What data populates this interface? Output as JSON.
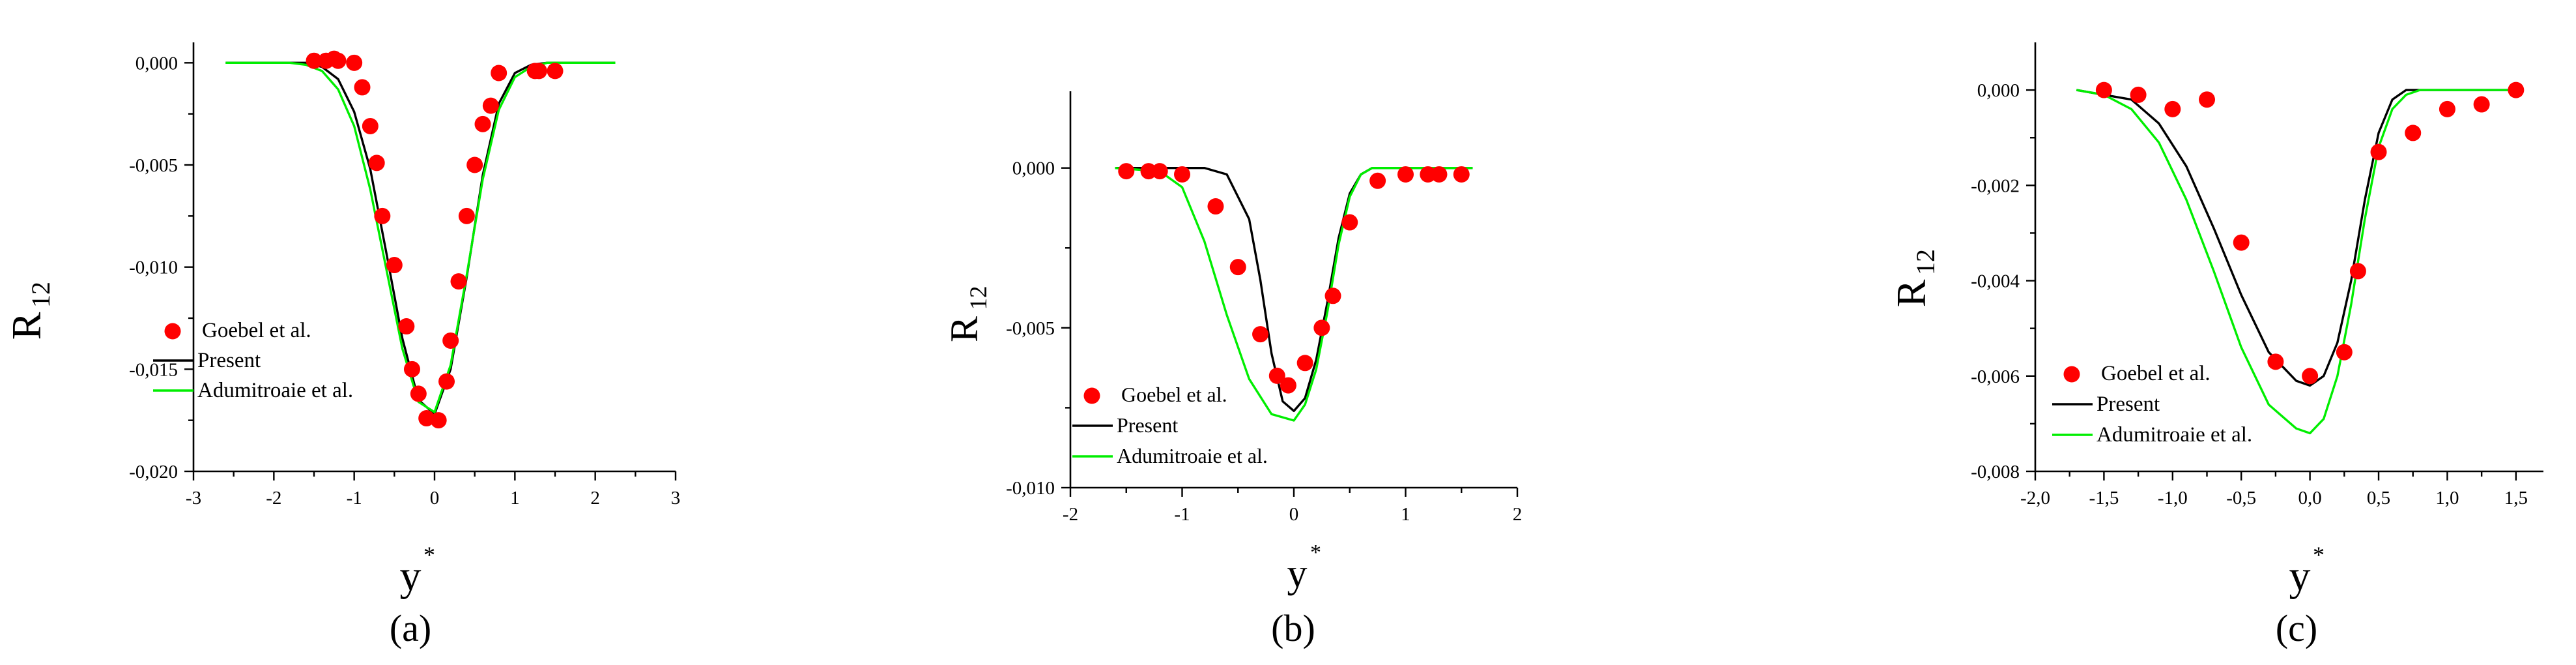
{
  "colors": {
    "data": "#ff0000",
    "present": "#000000",
    "adumitroaie": "#00ee00",
    "axis": "#000000"
  },
  "chart_data": [
    {
      "type": "scatter+line",
      "panel_label": "(a)",
      "xlabel": "y",
      "xlabel_sup": "*",
      "ylabel": "R",
      "ylabel_sub": "12",
      "xlim": [
        -3,
        3
      ],
      "ylim": [
        -0.02,
        0.001
      ],
      "xticks": [
        -3,
        -2,
        -1,
        0,
        1,
        2,
        3
      ],
      "xtick_labels": [
        "-3",
        "-2",
        "-1",
        "0",
        "1",
        "2",
        "3"
      ],
      "yticks": [
        0,
        -0.005,
        -0.01,
        -0.015,
        -0.02
      ],
      "ytick_labels": [
        "0,000",
        "-0,005",
        "-0,010",
        "-0,015",
        "-0,020"
      ],
      "legend": [
        "Goebel et al.",
        "Present",
        "Adumitroaie et al."
      ],
      "legend_position": "bottom-left",
      "series": [
        {
          "name": "Goebel et al.",
          "kind": "markers",
          "x": [
            -1.5,
            -1.35,
            -1.25,
            -1.2,
            -1.0,
            -0.9,
            -0.8,
            -0.72,
            -0.65,
            -0.5,
            -0.35,
            -0.28,
            -0.2,
            -0.1,
            0.05,
            0.15,
            0.2,
            0.3,
            0.4,
            0.5,
            0.6,
            0.7,
            0.8,
            1.25,
            1.3,
            1.5
          ],
          "y": [
            0.0001,
            0.0001,
            0.0002,
            0.0001,
            0.0,
            -0.0012,
            -0.0031,
            -0.0049,
            -0.0075,
            -0.0099,
            -0.0129,
            -0.015,
            -0.0162,
            -0.0174,
            -0.0175,
            -0.0156,
            -0.0136,
            -0.0107,
            -0.0075,
            -0.005,
            -0.003,
            -0.0021,
            -0.0005,
            -0.0004,
            -0.0004,
            -0.0004
          ]
        },
        {
          "name": "Present",
          "kind": "line",
          "x": [
            -2.6,
            -1.6,
            -1.4,
            -1.2,
            -1.0,
            -0.8,
            -0.6,
            -0.4,
            -0.2,
            0.0,
            0.2,
            0.4,
            0.6,
            0.8,
            1.0,
            1.2,
            1.4,
            2.25
          ],
          "y": [
            0.0,
            0.0,
            -0.0002,
            -0.0008,
            -0.0024,
            -0.0052,
            -0.0093,
            -0.0135,
            -0.0165,
            -0.0172,
            -0.015,
            -0.0105,
            -0.0055,
            -0.002,
            -0.0005,
            -0.0001,
            0.0,
            0.0
          ]
        },
        {
          "name": "Adumitroaie et al.",
          "kind": "line",
          "x": [
            -2.6,
            -1.8,
            -1.6,
            -1.4,
            -1.2,
            -1.0,
            -0.8,
            -0.6,
            -0.4,
            -0.2,
            0.0,
            0.2,
            0.4,
            0.6,
            0.8,
            1.0,
            1.2,
            1.4,
            2.25
          ],
          "y": [
            0.0,
            0.0,
            -0.0001,
            -0.0004,
            -0.0013,
            -0.0031,
            -0.0062,
            -0.0101,
            -0.014,
            -0.0166,
            -0.0171,
            -0.0148,
            -0.0104,
            -0.0057,
            -0.0023,
            -0.0007,
            -0.0002,
            0.0,
            0.0
          ]
        }
      ]
    },
    {
      "type": "scatter+line",
      "panel_label": "(b)",
      "xlabel": "y",
      "xlabel_sup": "*",
      "ylabel": "R",
      "ylabel_sub": "12",
      "xlim": [
        -2,
        2
      ],
      "ylim": [
        -0.01,
        0.0024
      ],
      "xticks": [
        -2,
        -1,
        0,
        1,
        2
      ],
      "xtick_labels": [
        "-2",
        "-1",
        "0",
        "1",
        "2"
      ],
      "yticks": [
        0,
        -0.005,
        -0.01
      ],
      "ytick_labels": [
        "0,000",
        "-0,005",
        "-0,010"
      ],
      "legend": [
        "Goebel et al.",
        "Present",
        "Adumitroaie et al."
      ],
      "legend_position": "bottom-left",
      "series": [
        {
          "name": "Goebel et al.",
          "kind": "markers",
          "x": [
            -1.5,
            -1.3,
            -1.2,
            -1.0,
            -0.7,
            -0.5,
            -0.3,
            -0.15,
            -0.05,
            0.1,
            0.25,
            0.35,
            0.5,
            0.75,
            1.0,
            1.2,
            1.3,
            1.5
          ],
          "y": [
            -0.0001,
            -0.0001,
            -0.0001,
            -0.0002,
            -0.0012,
            -0.0031,
            -0.0052,
            -0.0065,
            -0.0068,
            -0.0061,
            -0.005,
            -0.004,
            -0.0017,
            -0.0004,
            -0.0002,
            -0.0002,
            -0.0002,
            -0.0002
          ]
        },
        {
          "name": "Present",
          "kind": "line",
          "x": [
            -1.6,
            -0.8,
            -0.6,
            -0.4,
            -0.3,
            -0.2,
            -0.1,
            0.0,
            0.1,
            0.2,
            0.3,
            0.4,
            0.5,
            0.6,
            0.7,
            0.8,
            1.0,
            1.6
          ],
          "y": [
            0.0,
            0.0,
            -0.0002,
            -0.0016,
            -0.0035,
            -0.0058,
            -0.0073,
            -0.0076,
            -0.0072,
            -0.006,
            -0.0042,
            -0.0022,
            -0.0008,
            -0.0002,
            0.0,
            0.0,
            0.0,
            0.0
          ]
        },
        {
          "name": "Adumitroaie et al.",
          "kind": "line",
          "x": [
            -1.6,
            -1.2,
            -1.0,
            -0.8,
            -0.6,
            -0.4,
            -0.2,
            0.0,
            0.1,
            0.2,
            0.3,
            0.4,
            0.5,
            0.6,
            0.7,
            0.8,
            1.6
          ],
          "y": [
            0.0,
            -0.0001,
            -0.0006,
            -0.0023,
            -0.0046,
            -0.0066,
            -0.0077,
            -0.0079,
            -0.0074,
            -0.0063,
            -0.0045,
            -0.0024,
            -0.0009,
            -0.0002,
            0.0,
            0.0,
            0.0
          ]
        }
      ]
    },
    {
      "type": "scatter+line",
      "panel_label": "(c)",
      "xlabel": "y",
      "xlabel_sup": "*",
      "ylabel": "R",
      "ylabel_sub": "12",
      "xlim": [
        -2.0,
        1.7
      ],
      "ylim": [
        -0.008,
        0.001
      ],
      "xticks": [
        -2.0,
        -1.5,
        -1.0,
        -0.5,
        0.0,
        0.5,
        1.0,
        1.5
      ],
      "xtick_labels": [
        "-2,0",
        "-1,5",
        "-1,0",
        "-0,5",
        "0,0",
        "0,5",
        "1,0",
        "1,5"
      ],
      "yticks": [
        0,
        -0.002,
        -0.004,
        -0.006,
        -0.008
      ],
      "ytick_labels": [
        "0,000",
        "-0,002",
        "-0,004",
        "-0,006",
        "-0,008"
      ],
      "legend": [
        "Goebel et al.",
        "Present",
        "Adumitroaie et al."
      ],
      "legend_position": "bottom-left",
      "series": [
        {
          "name": "Goebel et al.",
          "kind": "markers",
          "x": [
            -1.5,
            -1.25,
            -1.0,
            -0.75,
            -0.5,
            -0.25,
            0.0,
            0.25,
            0.35,
            0.5,
            0.75,
            1.0,
            1.25,
            1.5
          ],
          "y": [
            0.0,
            -0.0001,
            -0.0004,
            -0.0002,
            -0.0032,
            -0.0057,
            -0.006,
            -0.0055,
            -0.0038,
            -0.0013,
            -0.0009,
            -0.0004,
            -0.0003,
            0.0
          ]
        },
        {
          "name": "Present",
          "kind": "line",
          "x": [
            -1.7,
            -1.5,
            -1.3,
            -1.1,
            -0.9,
            -0.7,
            -0.5,
            -0.3,
            -0.1,
            0.0,
            0.1,
            0.2,
            0.3,
            0.4,
            0.5,
            0.6,
            0.7,
            1.0,
            1.5
          ],
          "y": [
            0.0,
            -0.0001,
            -0.0002,
            -0.0007,
            -0.0016,
            -0.0029,
            -0.0043,
            -0.0055,
            -0.0061,
            -0.0062,
            -0.006,
            -0.0053,
            -0.004,
            -0.0023,
            -0.0009,
            -0.0002,
            0.0,
            0.0,
            0.0
          ]
        },
        {
          "name": "Adumitroaie et al.",
          "kind": "line",
          "x": [
            -1.7,
            -1.5,
            -1.3,
            -1.1,
            -0.9,
            -0.7,
            -0.5,
            -0.3,
            -0.1,
            0.0,
            0.1,
            0.2,
            0.3,
            0.4,
            0.5,
            0.6,
            0.7,
            0.8,
            1.0,
            1.5
          ],
          "y": [
            0.0,
            -0.0001,
            -0.0004,
            -0.0011,
            -0.0023,
            -0.0038,
            -0.0054,
            -0.0066,
            -0.0071,
            -0.0072,
            -0.0069,
            -0.006,
            -0.0045,
            -0.0027,
            -0.0012,
            -0.0004,
            -0.0001,
            0.0,
            0.0,
            0.0
          ]
        }
      ]
    }
  ]
}
